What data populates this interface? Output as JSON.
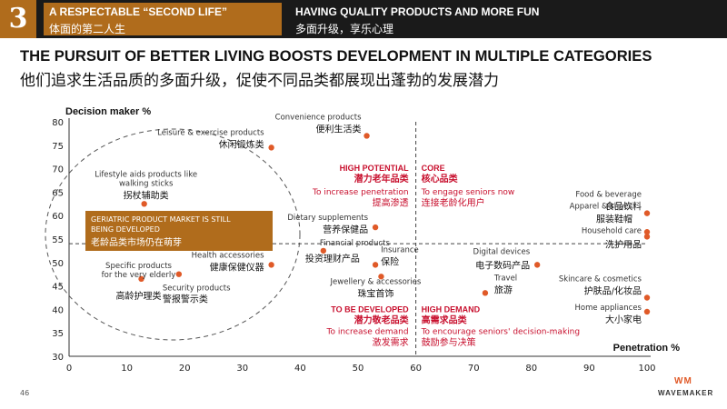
{
  "header": {
    "section_number": "3",
    "left_en": "A RESPECTABLE “SECOND LIFE”",
    "left_zh": "体面的第二人生",
    "right_en": "HAVING QUALITY PRODUCTS AND MORE FUN",
    "right_zh": "多面升级，享乐心理",
    "accent_color": "#b06c1c"
  },
  "title_en": "THE PURSUIT OF BETTER LIVING BOOSTS DEVELOPMENT IN MULTIPLE CATEGORIES",
  "title_zh": "他们追求生活品质的多面升级，促使不同品类都展现出蓬勃的发展潜力",
  "footer": {
    "page_number": "46",
    "logo": "WAVEMAKER",
    "logo_mark": "WM"
  },
  "chart_data": {
    "type": "scatter",
    "xlabel": "Penetration %",
    "ylabel": "Decision maker %",
    "xlim": [
      0,
      100
    ],
    "ylim": [
      30,
      80
    ],
    "xticks": [
      0,
      10,
      20,
      30,
      40,
      50,
      60,
      70,
      80,
      90,
      100
    ],
    "yticks": [
      30,
      35,
      40,
      45,
      50,
      55,
      60,
      65,
      70,
      75,
      80
    ],
    "grid": false,
    "point_color": "#e05a28",
    "divider_x": 60,
    "divider_y": 54,
    "points": [
      {
        "x": 51.5,
        "y": 77,
        "en": "Convenience products",
        "zh": "便利生活类"
      },
      {
        "x": 35,
        "y": 74.5,
        "en": "Leisure & exercise products",
        "zh": "休闲锻炼类"
      },
      {
        "x": 13,
        "y": 62.5,
        "en": "Lifestyle aids products like walking sticks",
        "zh": "拐杖辅助类"
      },
      {
        "x": 53,
        "y": 57.5,
        "en": "Dietary supplements",
        "zh": "营养保健品"
      },
      {
        "x": 35,
        "y": 49.5,
        "en": "Health accessories",
        "zh": "健康保健仪器"
      },
      {
        "x": 44,
        "y": 52.5,
        "en": "Financial products",
        "zh": "投资理财产品"
      },
      {
        "x": 53,
        "y": 49.5,
        "en": "Insurance",
        "zh": "保险"
      },
      {
        "x": 19,
        "y": 47.5,
        "en": "Security products",
        "zh": "警报警示类"
      },
      {
        "x": 12.5,
        "y": 46.5,
        "en": "Specific products for the very elderly",
        "zh": "高龄护理类"
      },
      {
        "x": 54,
        "y": 47,
        "en": "Jewellery & accessories",
        "zh": "珠宝首饰"
      },
      {
        "x": 72,
        "y": 43.5,
        "en": "Travel",
        "zh": "旅游"
      },
      {
        "x": 81,
        "y": 49.5,
        "en": "Digital devices",
        "zh": "电子数码产品"
      },
      {
        "x": 100,
        "y": 60.5,
        "en": "Food & beverage",
        "zh": "食品饮料"
      },
      {
        "x": 100,
        "y": 56.5,
        "en": "Apparel & shoes",
        "zh": "服装鞋帽"
      },
      {
        "x": 100,
        "y": 55.5,
        "en": "Household care",
        "zh": "洗护用品"
      },
      {
        "x": 100,
        "y": 42.5,
        "en": "Skincare & cosmetics",
        "zh": "护肤品/化妆品"
      },
      {
        "x": 100,
        "y": 39.5,
        "en": "Home appliances",
        "zh": "大小家电"
      }
    ],
    "quadrants": [
      {
        "title_en": "HIGH POTENTIAL",
        "title_zh": "潜力老年品类",
        "sub_en": "To increase penetration",
        "sub_zh": "提高渗透"
      },
      {
        "title_en": "CORE",
        "title_zh": "核心品类",
        "sub_en": "To engage seniors now",
        "sub_zh": "连接老龄化用户"
      },
      {
        "title_en": "TO BE DEVELOPED",
        "title_zh": "潜力敬老品类",
        "sub_en": "To increase demand",
        "sub_zh": "激发需求"
      },
      {
        "title_en": "HIGH DEMAND",
        "title_zh": "高需求品类",
        "sub_en": "To encourage seniors' decision-making",
        "sub_zh": "鼓励参与决策"
      }
    ],
    "callout": {
      "en": "GERIATRIC PRODUCT MARKET IS STILL BEING DEVELOPED",
      "zh": "老龄品类市场仍在萌芽",
      "color": "#b06c1c"
    }
  }
}
